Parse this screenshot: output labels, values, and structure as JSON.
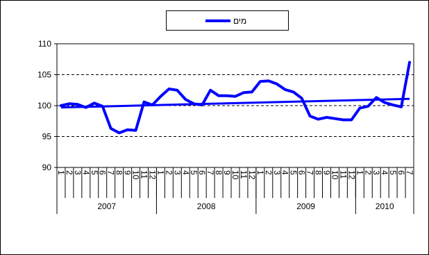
{
  "chart_data": {
    "type": "line",
    "ylim": [
      90,
      110
    ],
    "y_ticks": [
      90,
      95,
      100,
      105,
      110
    ],
    "grid": "horizontal dashed",
    "legend_position": "top-center",
    "line_color": "#0000ff",
    "years": [
      {
        "label": "2007",
        "months": 12
      },
      {
        "label": "2008",
        "months": 12
      },
      {
        "label": "2009",
        "months": 12
      },
      {
        "label": "2010",
        "months": 7
      }
    ],
    "x_tick_labels": [
      "1",
      "2",
      "3",
      "4",
      "5",
      "6",
      "7",
      "8",
      "9",
      "10",
      "11",
      "12",
      "1",
      "2",
      "3",
      "4",
      "5",
      "6",
      "7",
      "8",
      "9",
      "10",
      "11",
      "12",
      "1",
      "2",
      "3",
      "4",
      "5",
      "6",
      "7",
      "8",
      "9",
      "10",
      "11",
      "12",
      "1",
      "2",
      "3",
      "4",
      "5",
      "6",
      "7"
    ],
    "series": [
      {
        "name": "מים",
        "values": [
          100.0,
          100.3,
          100.2,
          99.7,
          100.4,
          99.9,
          96.3,
          95.6,
          96.1,
          96.0,
          100.6,
          100.1,
          101.5,
          102.7,
          102.5,
          101.0,
          100.3,
          100.1,
          102.5,
          101.6,
          101.6,
          101.5,
          102.1,
          102.2,
          103.9,
          104.0,
          103.5,
          102.6,
          102.2,
          101.2,
          98.3,
          97.8,
          98.1,
          97.9,
          97.7,
          97.7,
          99.6,
          99.9,
          101.3,
          100.5,
          100.1,
          99.8,
          107.0
        ]
      }
    ],
    "trendline": {
      "start": 99.7,
      "end": 101.1
    }
  }
}
